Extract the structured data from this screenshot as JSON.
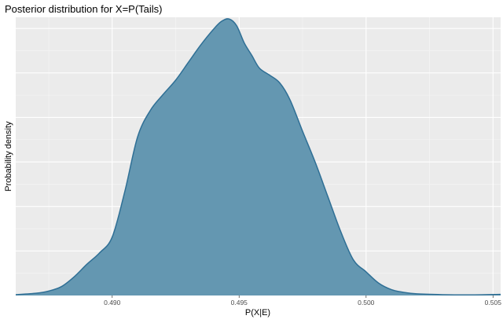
{
  "chart_data": {
    "type": "area",
    "title": "Posterior distribution for X=P(Tails)",
    "xlabel": "P(X|E)",
    "ylabel": "Probability density",
    "xlim": [
      0.4862,
      0.5053
    ],
    "ylim": [
      0,
      1.0
    ],
    "x_ticks": [
      0.49,
      0.495,
      0.5,
      0.505
    ],
    "x_tick_labels": [
      "0.490",
      "0.495",
      "0.500",
      "0.505"
    ],
    "y_tick_labels_shown": false,
    "grid": true,
    "fill_color": "#6497b1",
    "line_color": "#2f6f95",
    "panel_color": "#ebebeb",
    "series": [
      {
        "x": [
          0.4862,
          0.487,
          0.4875,
          0.488,
          0.4885,
          0.489,
          0.4895,
          0.49,
          0.4905,
          0.491,
          0.4915,
          0.492,
          0.4925,
          0.493,
          0.4935,
          0.494,
          0.4943,
          0.4946,
          0.4949,
          0.4952,
          0.4955,
          0.4958,
          0.4962,
          0.4966,
          0.497,
          0.4975,
          0.498,
          0.4985,
          0.499,
          0.4995,
          0.5,
          0.5005,
          0.501,
          0.5015,
          0.502,
          0.503,
          0.504,
          0.5053
        ],
        "y": [
          0.003,
          0.008,
          0.016,
          0.032,
          0.067,
          0.112,
          0.153,
          0.21,
          0.375,
          0.57,
          0.665,
          0.722,
          0.774,
          0.838,
          0.902,
          0.958,
          0.985,
          0.994,
          0.97,
          0.908,
          0.863,
          0.817,
          0.792,
          0.764,
          0.704,
          0.59,
          0.478,
          0.354,
          0.23,
          0.128,
          0.085,
          0.044,
          0.021,
          0.011,
          0.006,
          0.003,
          0.002,
          0.004
        ]
      }
    ]
  }
}
